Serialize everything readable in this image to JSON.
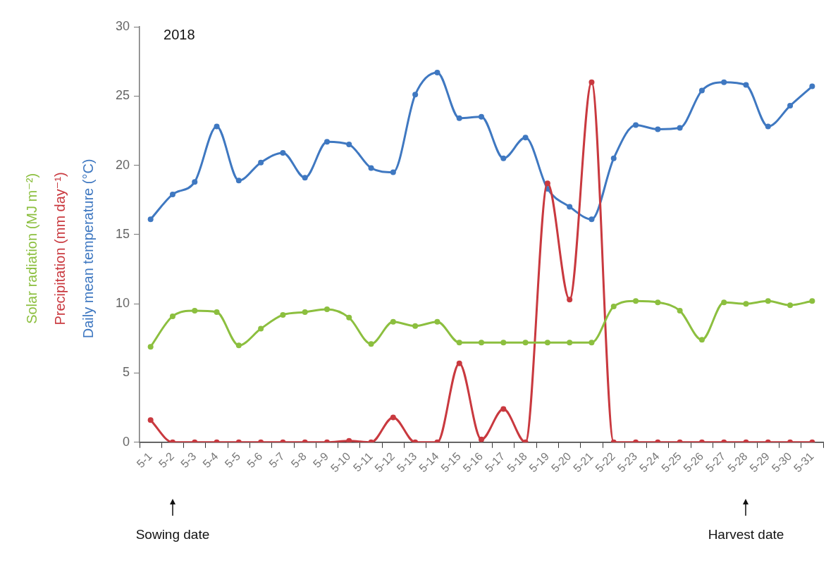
{
  "chart_data": {
    "type": "line",
    "categories": [
      "5-1",
      "5-2",
      "5-3",
      "5-4",
      "5-5",
      "5-6",
      "5-7",
      "5-8",
      "5-9",
      "5-10",
      "5-11",
      "5-12",
      "5-13",
      "5-14",
      "5-15",
      "5-16",
      "5-17",
      "5-18",
      "5-19",
      "5-20",
      "5-21",
      "5-22",
      "5-23",
      "5-24",
      "5-25",
      "5-26",
      "5-27",
      "5-28",
      "5-29",
      "5-30",
      "5-31"
    ],
    "series": [
      {
        "name": "Solar radiation (MJ m⁻²)",
        "color": "#8cbf3f",
        "values": [
          6.9,
          9.1,
          9.5,
          9.4,
          7.0,
          8.2,
          9.2,
          9.4,
          9.6,
          9.0,
          7.1,
          8.7,
          8.4,
          8.7,
          7.2,
          7.2,
          7.2,
          7.2,
          7.2,
          7.2,
          7.2,
          9.8,
          10.2,
          10.1,
          9.5,
          7.4,
          10.1,
          10.0,
          10.2,
          9.9,
          10.2
        ]
      },
      {
        "name": "Precipitation (mm day⁻¹)",
        "color": "#c9393f",
        "values": [
          1.6,
          0,
          0,
          0,
          0,
          0,
          0,
          0,
          0,
          0.1,
          0,
          1.8,
          0,
          0,
          5.7,
          0.2,
          2.4,
          0,
          18.7,
          10.3,
          26.0,
          0,
          0,
          0,
          0,
          0,
          0,
          0,
          0,
          0,
          0
        ]
      },
      {
        "name": "Daily mean temperature (°C)",
        "color": "#3f78c1",
        "values": [
          16.1,
          17.9,
          18.8,
          22.8,
          18.9,
          20.2,
          20.9,
          19.1,
          21.7,
          21.5,
          19.8,
          19.5,
          25.1,
          26.7,
          23.4,
          23.5,
          20.5,
          22.0,
          18.3,
          17.0,
          16.1,
          20.5,
          22.9,
          22.6,
          22.7,
          25.4,
          26.0,
          25.8,
          22.8,
          24.3,
          25.7
        ]
      }
    ],
    "ylim": [
      0,
      30
    ],
    "yticks": [
      0,
      5,
      10,
      15,
      20,
      25,
      30
    ],
    "marker": "circle",
    "line_style": "solid",
    "legend": "left",
    "grid": false,
    "annotations": [
      "2018",
      "Sowing date",
      "Harvest date"
    ]
  }
}
